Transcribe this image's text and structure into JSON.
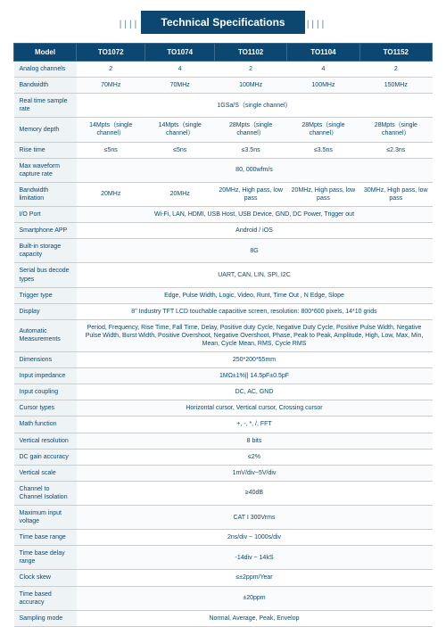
{
  "title": "Technical Specifications",
  "header_bg": "#0b4770",
  "models": [
    "TO1072",
    "TO1074",
    "TO1102",
    "TO1104",
    "TO1152"
  ],
  "rows": [
    {
      "label": "Analog channels",
      "cells": [
        "2",
        "4",
        "2",
        "4",
        "2"
      ]
    },
    {
      "label": "Bandwidth",
      "cells": [
        "70MHz",
        "70MHz",
        "100MHz",
        "100MHz",
        "150MHz"
      ]
    },
    {
      "label": "Real time sample rate",
      "span": "1GSa/S（single channel）"
    },
    {
      "label": "Memory depth",
      "cells": [
        "14Mpts（single channel）",
        "14Mpts（single channel）",
        "28Mpts（single channel）",
        "28Mpts（single channel）",
        "28Mpts（single channel）"
      ]
    },
    {
      "label": "Rise time",
      "cells": [
        "≤5ns",
        "≤5ns",
        "≤3.5ns",
        "≤3.5ns",
        "≤2.3ns"
      ]
    },
    {
      "label": "Max waveform capture rate",
      "span": "80, 000wfm/s"
    },
    {
      "label": "Bandwidth limitation",
      "cells": [
        "20MHz",
        "20MHz",
        "20MHz, High pass, low pass",
        "20MHz, High pass, low pass",
        "30MHz, High pass, low pass"
      ]
    },
    {
      "label": "I/O Port",
      "span": "Wi-Fi, LAN, HDMI, USB Host, USB Device, GND, DC Power, Trigger out"
    },
    {
      "label": "Smartphone APP",
      "span": "Android / iOS"
    },
    {
      "label": "Built-in storage capacity",
      "span": "8G"
    },
    {
      "label": "Serial bus decode types",
      "span": "UART, CAN, LIN, SPI, I2C"
    },
    {
      "label": "Trigger type",
      "span": "Edge, Pulse Width, Logic, Video, Runt, Time Out , N Edge, Slope"
    },
    {
      "label": "Display",
      "span": "8\" Industry TFT LCD touchable capacitive screen, resolution: 800*600 pixels, 14*10 grids"
    },
    {
      "label": "Automatic Measurements",
      "span": "Period, Frequency, Rise Time, Fall Time, Delay, Positive duty Cycle, Negative Duty Cycle, Positive Pulse Width, Negative Pulse Width, Burst Width, Positive Overshoot, Negative Overshoot, Phase, Peak to Peak, Amplitude, High, Low, Max, Min, Mean, Cycle Mean, RMS, Cycle RMS"
    },
    {
      "label": "Dimensions",
      "span": "250*200*55mm"
    },
    {
      "label": "Input impedance",
      "span": "1MΩ±1%|| 14.5pF±0.5pF"
    },
    {
      "label": "Input coupling",
      "span": "DC, AC, GND"
    },
    {
      "label": "Cursor types",
      "span": "Horizontal cursor, Vertical cursor, Crossing cursor"
    },
    {
      "label": "Math function",
      "span": "+, -, *, /, FFT"
    },
    {
      "label": "Vertical resolution",
      "span": "8 bits"
    },
    {
      "label": "DC gain accuracy",
      "span": "≤2%"
    },
    {
      "label": "Vertical scale",
      "span": "1mV/div~5V/div"
    },
    {
      "label": "Channel to Channel Isolation",
      "span": "≥40dB"
    },
    {
      "label": "Maximum input voltage",
      "span": "CAT I 300Vrms"
    },
    {
      "label": "Time base range",
      "span": "2ns/div ~ 1000s/div"
    },
    {
      "label": "Time base delay range",
      "span": "-14div ~ 14kS"
    },
    {
      "label": "Clock skew",
      "span": "≤±2ppm/Year"
    },
    {
      "label": "Time based accuracy",
      "span": "±20ppm"
    },
    {
      "label": "Sampling mode",
      "span": "Normal, Average, Peak, Envelop"
    }
  ]
}
